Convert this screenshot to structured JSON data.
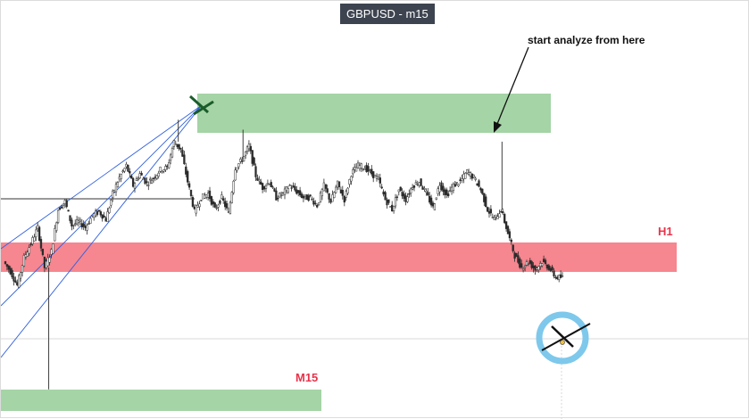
{
  "title": "GBPUSD - m15",
  "annotations": {
    "start_note": "start analyze from here",
    "h1_label": "H1",
    "m15_label": "M15"
  },
  "colors": {
    "supply_zone": "#a5d4a6",
    "h1_zone": "#f6868f",
    "m15_zone": "#a5d4a6",
    "candle": "#2b2b2b",
    "trendline": "#2f5fe0",
    "horizontal_line": "#333333",
    "label_red": "#e8334a",
    "circle": "#7ec8ec",
    "cross_top_left": "#1a5d2a"
  },
  "chart_data": {
    "type": "line",
    "title": "GBPUSD - m15",
    "xlabel": "",
    "ylabel": "",
    "grid": false,
    "ylim": [
      0,
      100
    ],
    "series": [
      {
        "values": [
          32,
          27,
          20,
          34,
          41,
          49,
          29,
          37,
          58,
          62,
          50,
          52,
          49,
          55,
          57,
          53,
          66,
          74,
          80,
          70,
          76,
          71,
          74,
          78,
          79,
          92,
          88,
          72,
          57,
          64,
          66,
          58,
          64,
          56,
          79,
          83,
          90,
          75,
          69,
          72,
          64,
          66,
          70,
          67,
          64,
          64,
          60,
          70,
          62,
          71,
          63,
          76,
          80,
          79,
          76,
          73,
          63,
          58,
          68,
          63,
          70,
          72,
          66,
          59,
          71,
          65,
          70,
          72,
          77,
          74,
          68,
          58,
          53,
          58,
          46,
          35,
          29,
          32,
          28,
          32,
          29,
          24,
          24
        ]
      }
    ],
    "zones": [
      {
        "name": "supply zone",
        "y_from": 86,
        "y_to": 100
      },
      {
        "name": "H1",
        "y_from": 46,
        "y_to": 55
      },
      {
        "name": "M15",
        "y_from": -10,
        "y_to": -3
      }
    ]
  }
}
